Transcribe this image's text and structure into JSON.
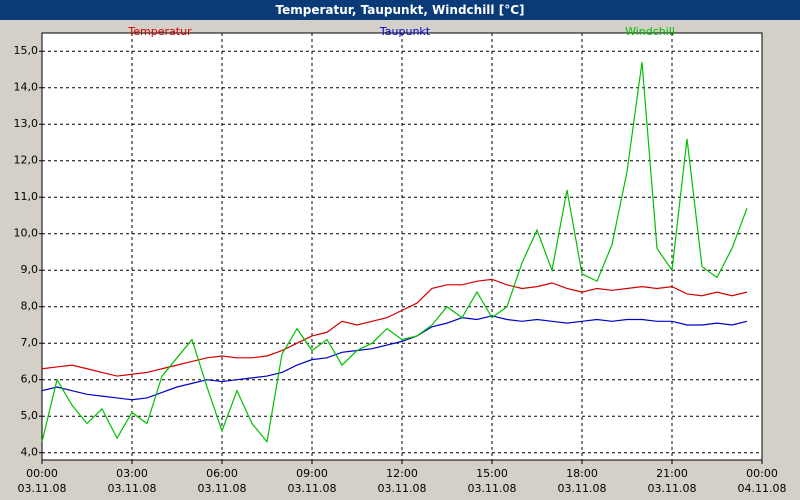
{
  "chart_data": {
    "type": "line",
    "title": "Temperatur, Taupunkt, Windchill [°C]",
    "x": [
      0,
      0.5,
      1,
      1.5,
      2,
      2.5,
      3,
      3.5,
      4,
      4.5,
      5,
      5.5,
      6,
      6.5,
      7,
      7.5,
      8,
      8.5,
      9,
      9.5,
      10,
      10.5,
      11,
      11.5,
      12,
      12.5,
      13,
      13.5,
      14,
      14.5,
      15,
      15.5,
      16,
      16.5,
      17,
      17.5,
      18,
      18.5,
      19,
      19.5,
      20,
      20.5,
      21,
      21.5,
      22,
      22.5,
      23,
      23.5
    ],
    "series": [
      {
        "name": "Temperatur",
        "color": "#d40000",
        "values": [
          6.3,
          6.35,
          6.4,
          6.3,
          6.2,
          6.1,
          6.15,
          6.2,
          6.3,
          6.4,
          6.5,
          6.6,
          6.65,
          6.6,
          6.6,
          6.65,
          6.8,
          7.0,
          7.2,
          7.3,
          7.6,
          7.5,
          7.6,
          7.7,
          7.9,
          8.1,
          8.5,
          8.6,
          8.6,
          8.7,
          8.75,
          8.6,
          8.5,
          8.55,
          8.65,
          8.5,
          8.4,
          8.5,
          8.45,
          8.5,
          8.55,
          8.5,
          8.55,
          8.35,
          8.3,
          8.4,
          8.3,
          8.4
        ]
      },
      {
        "name": "Taupunkt",
        "color": "#0000c8",
        "values": [
          5.7,
          5.8,
          5.7,
          5.6,
          5.55,
          5.5,
          5.45,
          5.5,
          5.65,
          5.8,
          5.9,
          6.0,
          5.95,
          6.0,
          6.05,
          6.1,
          6.2,
          6.4,
          6.55,
          6.6,
          6.75,
          6.8,
          6.85,
          6.95,
          7.05,
          7.2,
          7.45,
          7.55,
          7.7,
          7.65,
          7.75,
          7.65,
          7.6,
          7.65,
          7.6,
          7.55,
          7.6,
          7.65,
          7.6,
          7.65,
          7.65,
          7.6,
          7.6,
          7.5,
          7.5,
          7.55,
          7.5,
          7.6
        ]
      },
      {
        "name": "Windchill",
        "color": "#00c000",
        "values": [
          4.3,
          6.0,
          5.3,
          4.8,
          5.2,
          4.4,
          5.1,
          4.8,
          6.1,
          6.6,
          7.1,
          5.8,
          4.6,
          5.7,
          4.8,
          4.3,
          6.7,
          7.4,
          6.8,
          7.1,
          6.4,
          6.8,
          7.0,
          7.4,
          7.1,
          7.2,
          7.5,
          8.0,
          7.7,
          8.4,
          7.7,
          8.0,
          9.2,
          10.1,
          9.0,
          11.2,
          8.9,
          8.7,
          9.7,
          11.7,
          14.7,
          9.6,
          9.0,
          12.6,
          9.1,
          8.8,
          9.6,
          10.7
        ]
      }
    ],
    "xlim": [
      0,
      24
    ],
    "xticks": [
      {
        "value": 0,
        "label": "00:00\n03.11.08"
      },
      {
        "value": 3,
        "label": "03:00\n03.11.08"
      },
      {
        "value": 6,
        "label": "06:00\n03.11.08"
      },
      {
        "value": 9,
        "label": "09:00\n03.11.08"
      },
      {
        "value": 12,
        "label": "12:00\n03.11.08"
      },
      {
        "value": 15,
        "label": "15:00\n03.11.08"
      },
      {
        "value": 18,
        "label": "18:00\n03.11.08"
      },
      {
        "value": 21,
        "label": "21:00\n03.11.08"
      },
      {
        "value": 24,
        "label": "00:00\n04.11.08"
      }
    ],
    "ylim": [
      3.8,
      15.5
    ],
    "yticks": [
      {
        "value": 4,
        "label": "4,0"
      },
      {
        "value": 5,
        "label": "5,0"
      },
      {
        "value": 6,
        "label": "6,0"
      },
      {
        "value": 7,
        "label": "7,0"
      },
      {
        "value": 8,
        "label": "8,0"
      },
      {
        "value": 9,
        "label": "9,0"
      },
      {
        "value": 10,
        "label": "10,0"
      },
      {
        "value": 11,
        "label": "11,0"
      },
      {
        "value": 12,
        "label": "12,0"
      },
      {
        "value": 13,
        "label": "13,0"
      },
      {
        "value": 14,
        "label": "14,0"
      },
      {
        "value": 15,
        "label": "15,0"
      }
    ],
    "grid": true
  }
}
